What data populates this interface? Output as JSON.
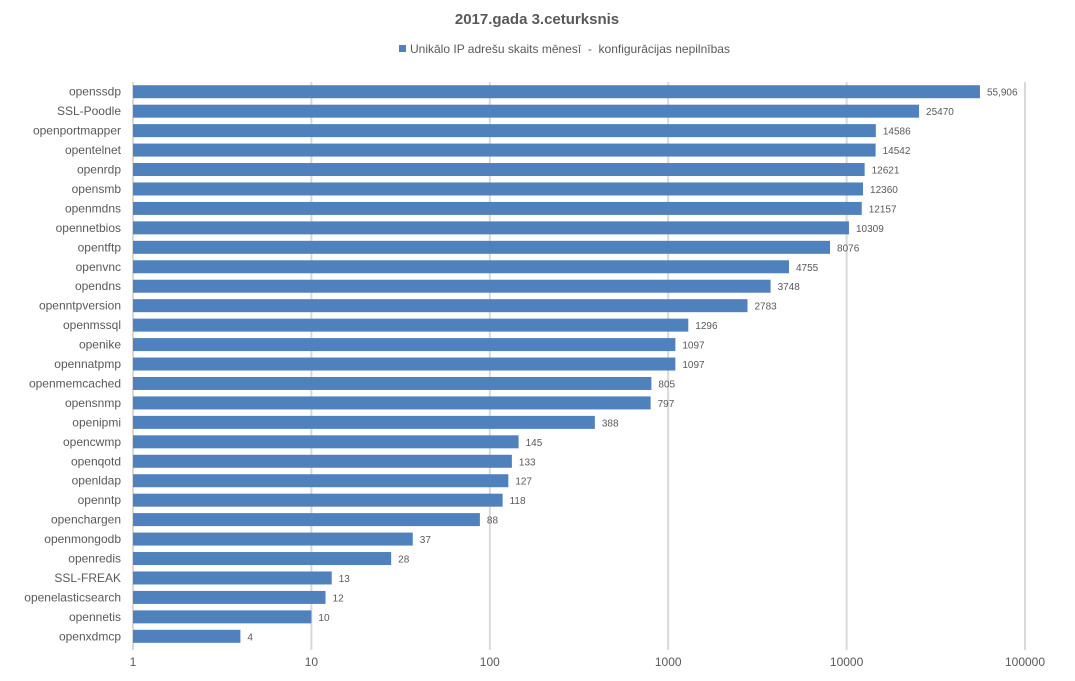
{
  "chart_data": {
    "type": "bar",
    "orientation": "horizontal",
    "title": "2017.gada 3.ceturksnis",
    "legend_position": "top",
    "x_scale": "log",
    "xlim": [
      1,
      100000
    ],
    "x_ticks": [
      "1",
      "10",
      "100",
      "1000",
      "10000",
      "100000"
    ],
    "grid": true,
    "categories": [
      "openssdp",
      "SSL-Poodle",
      "openportmapper",
      "opentelnet",
      "openrdp",
      "opensmb",
      "openmdns",
      "opennetbios",
      "opentftp",
      "openvnc",
      "opendns",
      "openntpversion",
      "openmssql",
      "openike",
      "opennatpmp",
      "openmemcached",
      "opensnmp",
      "openipmi",
      "opencwmp",
      "openqotd",
      "openldap",
      "openntp",
      "openchargen",
      "openmongodb",
      "openredis",
      "SSL-FREAK",
      "openelasticsearch",
      "opennetis",
      "openxdmcp"
    ],
    "series": [
      {
        "name": "Unikālo IP adrešu skaits mēnesī  -  konfigurācijas nepilnības",
        "color": "#4f81bd",
        "values": [
          55906,
          25470,
          14586,
          14542,
          12621,
          12360,
          12157,
          10309,
          8076,
          4755,
          3748,
          2783,
          1296,
          1097,
          1097,
          805,
          797,
          388,
          145,
          133,
          127,
          118,
          88,
          37,
          28,
          13,
          12,
          10,
          4
        ],
        "labels": [
          "55,906",
          "25470",
          "14586",
          "14542",
          "12621",
          "12360",
          "12157",
          "10309",
          "8076",
          "4755",
          "3748",
          "2783",
          "1296",
          "1097",
          "1097",
          "805",
          "797",
          "388",
          "145",
          "133",
          "127",
          "118",
          "88",
          "37",
          "28",
          "13",
          "12",
          "10",
          "4"
        ]
      }
    ]
  }
}
